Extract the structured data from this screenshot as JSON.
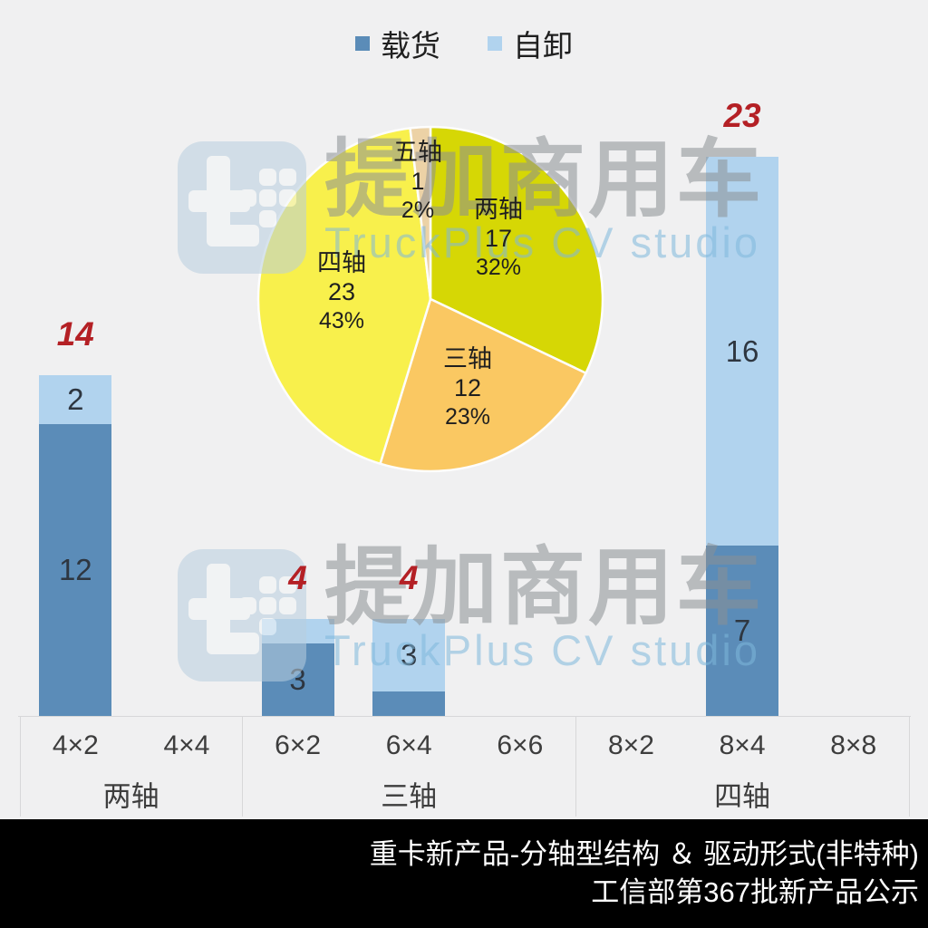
{
  "legend": {
    "items": [
      {
        "label": "载货",
        "color": "#5b8cb8"
      },
      {
        "label": "自卸",
        "color": "#b1d3ee"
      }
    ]
  },
  "chart_data": [
    {
      "type": "bar",
      "stacked": true,
      "categories": [
        "4×2",
        "4×4",
        "6×2",
        "6×4",
        "6×6",
        "8×2",
        "8×4",
        "8×8"
      ],
      "groups": [
        {
          "label": "两轴",
          "span": 2
        },
        {
          "label": "三轴",
          "span": 3
        },
        {
          "label": "四轴",
          "span": 3
        }
      ],
      "series": [
        {
          "name": "载货",
          "color": "#5b8cb8",
          "values": [
            12,
            0,
            3,
            1,
            0,
            0,
            7,
            0
          ]
        },
        {
          "name": "自卸",
          "color": "#b1d3ee",
          "values": [
            2,
            0,
            1,
            3,
            0,
            0,
            16,
            0
          ]
        }
      ],
      "totals": [
        14,
        0,
        4,
        4,
        0,
        0,
        23,
        0
      ],
      "total_label_color": "#b42025",
      "ylim": [
        0,
        23
      ],
      "grid": false,
      "segment_label_min": 2
    },
    {
      "type": "pie",
      "start_angle_deg": 0,
      "direction": "clockwise",
      "slices": [
        {
          "label": "两轴",
          "value": 17,
          "pct": "32%",
          "color": "#d6d705"
        },
        {
          "label": "三轴",
          "value": 12,
          "pct": "23%",
          "color": "#fac862"
        },
        {
          "label": "四轴",
          "value": 23,
          "pct": "43%",
          "color": "#f8f04c"
        },
        {
          "label": "五轴",
          "value": 1,
          "pct": "2%",
          "color": "#ecd2a6"
        }
      ]
    }
  ],
  "watermark": {
    "cn": "提加商用车",
    "en": "TruckPlus CV studio"
  },
  "footer": {
    "line1": "重卡新产品-分轴型结构 ＆ 驱动形式(非特种)",
    "line2": "工信部第367批新产品公示"
  }
}
